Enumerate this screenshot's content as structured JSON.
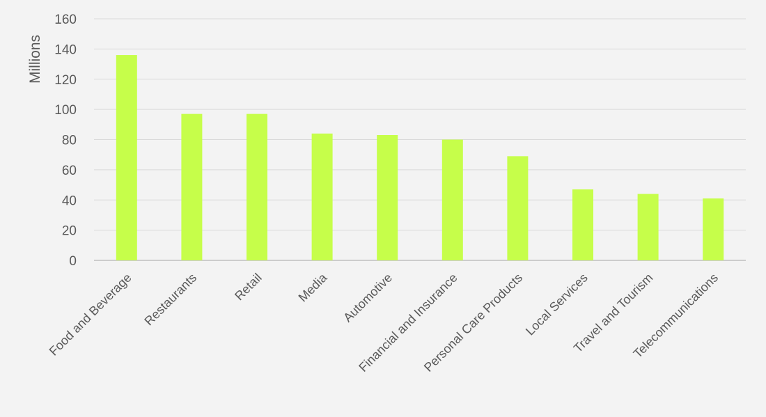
{
  "chart_data": {
    "type": "bar",
    "title": "",
    "xlabel": "",
    "ylabel": "Millions",
    "ylim": [
      0,
      160
    ],
    "yticks": [
      0,
      20,
      40,
      60,
      80,
      100,
      120,
      140,
      160
    ],
    "grid": true,
    "legend": "none",
    "colors": {
      "bar": "#c6fe4a",
      "grid": "#d9d9d9",
      "text": "#595959",
      "background": "#f3f3f3"
    },
    "categories": [
      "Food and Beverage",
      "Restaurants",
      "Retail",
      "Media",
      "Automotive",
      "Financial and Insurance",
      "Personal Care Products",
      "Local Services",
      "Travel and Tourism",
      "Telecommunications"
    ],
    "values": [
      136,
      97,
      97,
      84,
      83,
      80,
      69,
      47,
      44,
      41
    ]
  }
}
